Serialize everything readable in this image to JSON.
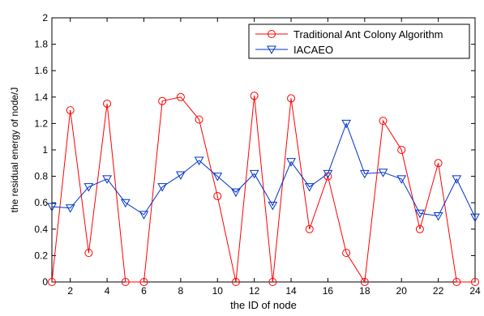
{
  "chart_data": {
    "type": "line",
    "title": "",
    "xlabel": "the ID of node",
    "ylabel": "the residual energy of node/J",
    "xlim": [
      1,
      24
    ],
    "ylim": [
      0,
      2
    ],
    "x_ticks": [
      2,
      4,
      6,
      8,
      10,
      12,
      14,
      16,
      18,
      20,
      22,
      24
    ],
    "y_ticks": [
      0,
      0.2,
      0.4,
      0.6,
      0.8,
      1,
      1.2,
      1.4,
      1.6,
      1.8,
      2
    ],
    "x_tick_labels": [
      "2",
      "4",
      "6",
      "8",
      "10",
      "12",
      "14",
      "16",
      "18",
      "20",
      "22",
      "24"
    ],
    "y_tick_labels": [
      "0",
      "0.2",
      "0.4",
      "0.6",
      "0.8",
      "1",
      "1.2",
      "1.4",
      "1.6",
      "1.8",
      "2"
    ],
    "x": [
      1,
      2,
      3,
      4,
      5,
      6,
      7,
      8,
      9,
      10,
      11,
      12,
      13,
      14,
      15,
      16,
      17,
      18,
      19,
      20,
      21,
      22,
      23,
      24
    ],
    "grid": false,
    "legend_position": "top-right",
    "series": [
      {
        "name": "Traditional Ant Colony Algorithm",
        "color": "#ff0000",
        "marker": "circle",
        "values": [
          0,
          1.3,
          0.22,
          1.35,
          0,
          0,
          1.37,
          1.4,
          1.23,
          0.65,
          0,
          1.41,
          0,
          1.39,
          0.4,
          0.8,
          0.22,
          0,
          1.22,
          1.0,
          0.4,
          0.9,
          0,
          0
        ]
      },
      {
        "name": "IACAEO",
        "color": "#0033cc",
        "marker": "triangle-down",
        "values": [
          0.57,
          0.56,
          0.72,
          0.78,
          0.6,
          0.51,
          0.72,
          0.81,
          0.92,
          0.8,
          0.68,
          0.82,
          0.58,
          0.91,
          0.72,
          0.82,
          1.2,
          0.82,
          0.83,
          0.78,
          0.52,
          0.5,
          0.78,
          0.49
        ]
      }
    ]
  }
}
